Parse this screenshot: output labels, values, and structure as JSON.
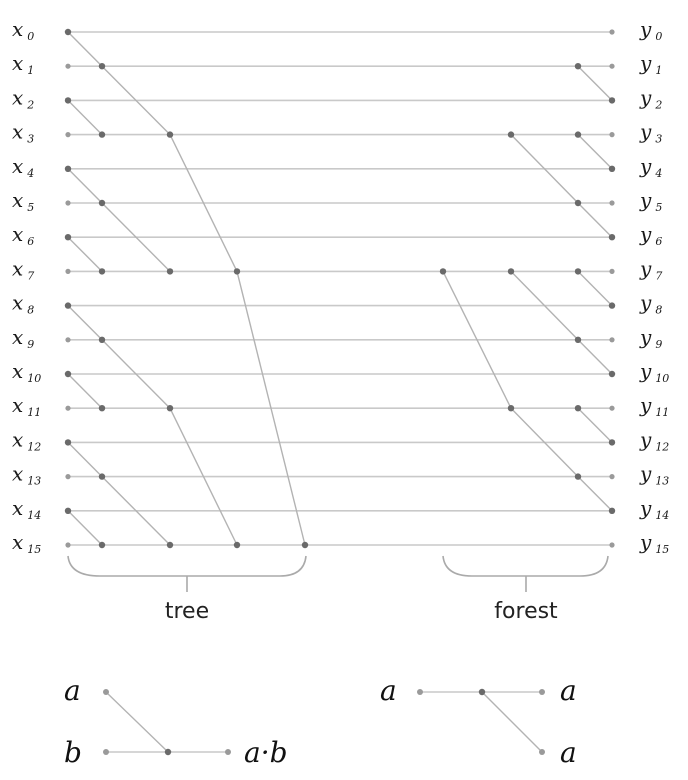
{
  "inputs": [
    {
      "base": "x",
      "sub": "0"
    },
    {
      "base": "x",
      "sub": "1"
    },
    {
      "base": "x",
      "sub": "2"
    },
    {
      "base": "x",
      "sub": "3"
    },
    {
      "base": "x",
      "sub": "4"
    },
    {
      "base": "x",
      "sub": "5"
    },
    {
      "base": "x",
      "sub": "6"
    },
    {
      "base": "x",
      "sub": "7"
    },
    {
      "base": "x",
      "sub": "8"
    },
    {
      "base": "x",
      "sub": "9"
    },
    {
      "base": "x",
      "sub": "10"
    },
    {
      "base": "x",
      "sub": "11"
    },
    {
      "base": "x",
      "sub": "12"
    },
    {
      "base": "x",
      "sub": "13"
    },
    {
      "base": "x",
      "sub": "14"
    },
    {
      "base": "x",
      "sub": "15"
    }
  ],
  "outputs": [
    {
      "base": "y",
      "sub": "0"
    },
    {
      "base": "y",
      "sub": "1"
    },
    {
      "base": "y",
      "sub": "2"
    },
    {
      "base": "y",
      "sub": "3"
    },
    {
      "base": "y",
      "sub": "4"
    },
    {
      "base": "y",
      "sub": "5"
    },
    {
      "base": "y",
      "sub": "6"
    },
    {
      "base": "y",
      "sub": "7"
    },
    {
      "base": "y",
      "sub": "8"
    },
    {
      "base": "y",
      "sub": "9"
    },
    {
      "base": "y",
      "sub": "10"
    },
    {
      "base": "y",
      "sub": "11"
    },
    {
      "base": "y",
      "sub": "12"
    },
    {
      "base": "y",
      "sub": "13"
    },
    {
      "base": "y",
      "sub": "14"
    },
    {
      "base": "y",
      "sub": "15"
    }
  ],
  "sections": {
    "tree_label": "tree",
    "forest_label": "forest"
  },
  "legend": {
    "operator": {
      "input_a": "a",
      "input_b": "b",
      "output": "a·b"
    },
    "forward": {
      "input": "a",
      "output_through": "a",
      "output_branch": "a"
    }
  },
  "colors": {
    "wire": "#c9c9c9",
    "edge": "#b3b3b3",
    "dot": "#6a6a6a",
    "end_dot": "#9a9a9a",
    "brace": "#aaaaaa",
    "text": "#1a1a1a"
  }
}
